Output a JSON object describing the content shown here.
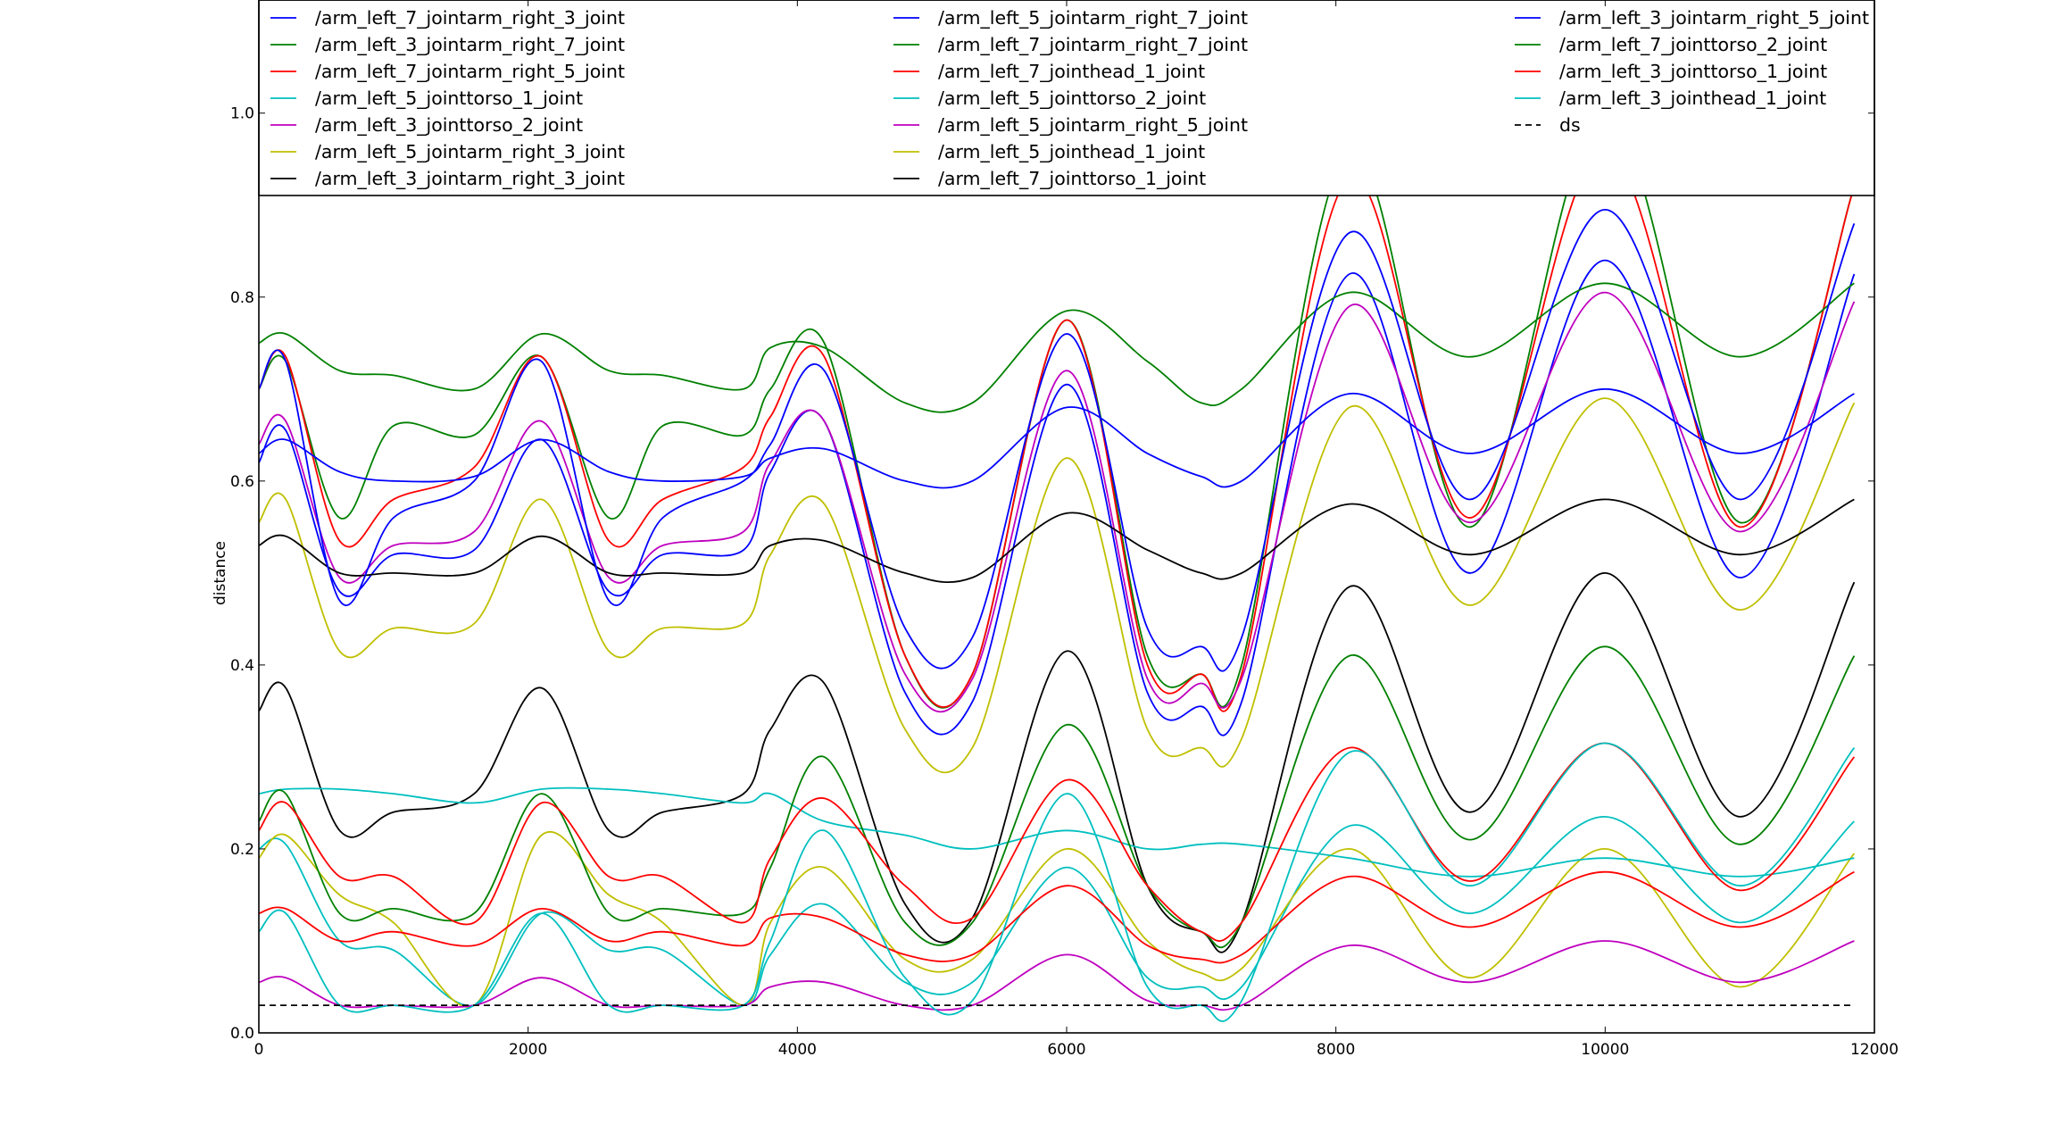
{
  "chart_data": {
    "type": "line",
    "title": "",
    "xlabel": "",
    "ylabel": "distance",
    "xlim": [
      0,
      12000
    ],
    "ylim": [
      0.0,
      1.0
    ],
    "x_ticks": [
      0,
      2000,
      4000,
      6000,
      8000,
      10000,
      12000
    ],
    "x_tick_labels": [
      "0",
      "2000",
      "4000",
      "6000",
      "8000",
      "10000",
      "12000"
    ],
    "y_ticks": [
      0.0,
      0.2,
      0.4,
      0.6,
      0.8,
      1.0
    ],
    "y_tick_labels": [
      "0.0",
      "0.2",
      "0.4",
      "0.6",
      "0.8",
      "1.0"
    ],
    "grid": false,
    "legend_position": "top, 3 columns",
    "x": [
      0,
      200,
      600,
      1000,
      1600,
      2100,
      2600,
      3000,
      3600,
      3800,
      4200,
      4800,
      5300,
      6000,
      6600,
      7000,
      7300,
      8100,
      9000,
      10000,
      11000,
      11850
    ],
    "series": [
      {
        "name": "/arm_left_7_jointarm_right_3_joint",
        "color": "#0000ff",
        "values": [
          0.62,
          0.655,
          0.48,
          0.52,
          0.525,
          0.645,
          0.48,
          0.52,
          0.525,
          0.61,
          0.665,
          0.37,
          0.36,
          0.705,
          0.37,
          0.355,
          0.36,
          0.825,
          0.5,
          0.84,
          0.495,
          0.825
        ]
      },
      {
        "name": "/arm_left_3_jointarm_right_7_joint",
        "color": "#008000",
        "values": [
          0.7,
          0.73,
          0.56,
          0.66,
          0.65,
          0.735,
          0.56,
          0.66,
          0.65,
          0.7,
          0.75,
          0.41,
          0.39,
          0.775,
          0.41,
          0.39,
          0.4,
          0.96,
          0.55,
          1.0,
          0.555,
          0.92
        ]
      },
      {
        "name": "/arm_left_7_jointarm_right_5_joint",
        "color": "#ff0000",
        "values": [
          0.7,
          0.735,
          0.535,
          0.58,
          0.615,
          0.735,
          0.535,
          0.58,
          0.615,
          0.67,
          0.735,
          0.41,
          0.39,
          0.775,
          0.4,
          0.39,
          0.39,
          0.93,
          0.56,
          0.96,
          0.55,
          0.92
        ]
      },
      {
        "name": "/arm_left_5_jointtorso_1_joint",
        "color": "#00bfbf",
        "values": [
          0.2,
          0.205,
          0.1,
          0.09,
          0.03,
          0.13,
          0.09,
          0.09,
          0.03,
          0.085,
          0.14,
          0.055,
          0.055,
          0.18,
          0.06,
          0.05,
          0.05,
          0.225,
          0.13,
          0.235,
          0.12,
          0.23
        ]
      },
      {
        "name": "/arm_left_3_jointtorso_2_joint",
        "color": "#bf00bf",
        "values": [
          0.64,
          0.665,
          0.495,
          0.53,
          0.545,
          0.665,
          0.495,
          0.53,
          0.545,
          0.62,
          0.665,
          0.39,
          0.385,
          0.72,
          0.385,
          0.38,
          0.385,
          0.79,
          0.555,
          0.805,
          0.545,
          0.795
        ]
      },
      {
        "name": "/arm_left_5_jointarm_right_3_joint",
        "color": "#bfbf00",
        "values": [
          0.19,
          0.215,
          0.15,
          0.12,
          0.03,
          0.215,
          0.15,
          0.12,
          0.03,
          0.12,
          0.18,
          0.08,
          0.08,
          0.2,
          0.1,
          0.065,
          0.07,
          0.2,
          0.06,
          0.2,
          0.05,
          0.195
        ]
      },
      {
        "name": "/arm_left_3_jointarm_right_3_joint",
        "color": "#000000",
        "values": [
          0.35,
          0.375,
          0.22,
          0.24,
          0.26,
          0.375,
          0.22,
          0.24,
          0.26,
          0.33,
          0.38,
          0.14,
          0.125,
          0.415,
          0.16,
          0.11,
          0.12,
          0.485,
          0.24,
          0.5,
          0.235,
          0.49
        ]
      },
      {
        "name": "/arm_left_5_jointarm_right_7_joint",
        "color": "#0000ff",
        "values": [
          0.63,
          0.645,
          0.61,
          0.6,
          0.605,
          0.645,
          0.61,
          0.6,
          0.605,
          0.625,
          0.635,
          0.6,
          0.6,
          0.68,
          0.63,
          0.605,
          0.6,
          0.695,
          0.63,
          0.7,
          0.63,
          0.695
        ]
      },
      {
        "name": "/arm_left_7_jointarm_right_7_joint",
        "color": "#008000",
        "values": [
          0.75,
          0.76,
          0.72,
          0.715,
          0.7,
          0.76,
          0.72,
          0.715,
          0.7,
          0.745,
          0.745,
          0.685,
          0.685,
          0.785,
          0.73,
          0.685,
          0.7,
          0.805,
          0.735,
          0.815,
          0.735,
          0.815
        ]
      },
      {
        "name": "/arm_left_7_jointhead_1_joint",
        "color": "#ff0000",
        "values": [
          0.13,
          0.135,
          0.1,
          0.11,
          0.095,
          0.135,
          0.1,
          0.11,
          0.095,
          0.125,
          0.125,
          0.085,
          0.085,
          0.16,
          0.095,
          0.08,
          0.085,
          0.17,
          0.115,
          0.175,
          0.115,
          0.175
        ]
      },
      {
        "name": "/arm_left_5_jointtorso_2_joint",
        "color": "#00bfbf",
        "values": [
          0.26,
          0.265,
          0.265,
          0.26,
          0.25,
          0.265,
          0.265,
          0.26,
          0.25,
          0.26,
          0.23,
          0.215,
          0.2,
          0.22,
          0.2,
          0.205,
          0.205,
          0.19,
          0.17,
          0.19,
          0.17,
          0.19
        ]
      },
      {
        "name": "/arm_left_5_jointarm_right_5_joint",
        "color": "#bf00bf",
        "values": [
          0.055,
          0.06,
          0.03,
          0.03,
          0.03,
          0.06,
          0.03,
          0.03,
          0.03,
          0.05,
          0.055,
          0.03,
          0.03,
          0.085,
          0.035,
          0.03,
          0.03,
          0.095,
          0.055,
          0.1,
          0.055,
          0.1
        ]
      },
      {
        "name": "/arm_left_5_jointhead_1_joint",
        "color": "#bfbf00",
        "values": [
          0.555,
          0.58,
          0.415,
          0.44,
          0.445,
          0.58,
          0.415,
          0.44,
          0.445,
          0.52,
          0.575,
          0.33,
          0.31,
          0.625,
          0.33,
          0.31,
          0.32,
          0.68,
          0.465,
          0.69,
          0.46,
          0.685
        ]
      },
      {
        "name": "/arm_left_7_jointtorso_1_joint",
        "color": "#000000",
        "values": [
          0.53,
          0.54,
          0.5,
          0.5,
          0.5,
          0.54,
          0.5,
          0.5,
          0.5,
          0.53,
          0.535,
          0.5,
          0.495,
          0.565,
          0.525,
          0.5,
          0.5,
          0.575,
          0.52,
          0.58,
          0.52,
          0.58
        ]
      },
      {
        "name": "/arm_left_3_jointarm_right_5_joint",
        "color": "#0000ff",
        "values": [
          0.7,
          0.73,
          0.47,
          0.56,
          0.6,
          0.73,
          0.47,
          0.56,
          0.6,
          0.64,
          0.72,
          0.44,
          0.43,
          0.76,
          0.44,
          0.42,
          0.43,
          0.87,
          0.58,
          0.895,
          0.58,
          0.88
        ]
      },
      {
        "name": "/arm_left_7_jointtorso_2_joint",
        "color": "#008000",
        "values": [
          0.23,
          0.26,
          0.13,
          0.135,
          0.13,
          0.26,
          0.13,
          0.135,
          0.13,
          0.18,
          0.3,
          0.12,
          0.12,
          0.335,
          0.16,
          0.11,
          0.12,
          0.41,
          0.21,
          0.42,
          0.205,
          0.41
        ]
      },
      {
        "name": "/arm_left_3_jointtorso_1_joint",
        "color": "#ff0000",
        "values": [
          0.22,
          0.25,
          0.17,
          0.17,
          0.12,
          0.25,
          0.17,
          0.17,
          0.12,
          0.19,
          0.255,
          0.16,
          0.125,
          0.275,
          0.16,
          0.11,
          0.12,
          0.31,
          0.165,
          0.315,
          0.155,
          0.3
        ]
      },
      {
        "name": "/arm_left_3_jointhead_1_joint",
        "color": "#00bfbf",
        "values": [
          0.11,
          0.13,
          0.03,
          0.03,
          0.03,
          0.13,
          0.03,
          0.03,
          0.03,
          0.1,
          0.22,
          0.06,
          0.035,
          0.26,
          0.05,
          0.03,
          0.035,
          0.305,
          0.16,
          0.315,
          0.16,
          0.31
        ]
      },
      {
        "name": "ds",
        "color": "#000000",
        "dashed": true,
        "values": [
          0.03,
          0.03,
          0.03,
          0.03,
          0.03,
          0.03,
          0.03,
          0.03,
          0.03,
          0.03,
          0.03,
          0.03,
          0.03,
          0.03,
          0.03,
          0.03,
          0.03,
          0.03,
          0.03,
          0.03,
          0.03,
          0.03
        ]
      }
    ]
  }
}
